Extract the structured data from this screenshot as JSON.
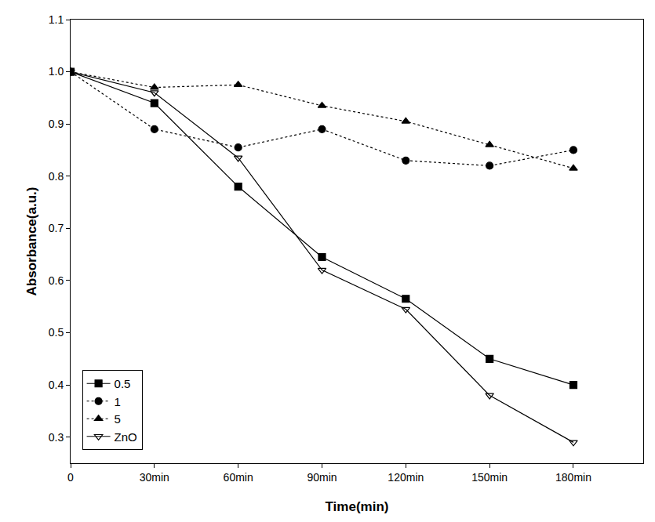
{
  "chart_data": {
    "type": "line",
    "x_label": "Time(min)",
    "y_label": "Absorbance(a.u.)",
    "x": [
      0,
      30,
      60,
      90,
      120,
      150,
      180
    ],
    "xlim": [
      0,
      205
    ],
    "xticks": [
      0,
      {
        "value": 30,
        "label": "30min"
      },
      {
        "value": 60,
        "label": "60min"
      },
      {
        "value": 90,
        "label": "90min"
      },
      {
        "value": 120,
        "label": "120min"
      },
      {
        "value": 150,
        "label": "150min"
      },
      {
        "value": 180,
        "label": "180min"
      }
    ],
    "ylim": [
      0.25,
      1.1
    ],
    "yticks": [
      0.3,
      0.4,
      0.5,
      0.6,
      0.7,
      0.8,
      0.9,
      {
        "value": 1,
        "label": "1.0"
      },
      1.1
    ],
    "grid": false,
    "legend": "lower left",
    "series": [
      {
        "name": "0.5",
        "color": "#000000",
        "marker": "square",
        "line_style": "solid",
        "values": [
          1.0,
          0.94,
          0.78,
          0.645,
          0.565,
          0.45,
          0.4
        ]
      },
      {
        "name": "1",
        "color": "#000000",
        "marker": "circle",
        "line_style": "dot",
        "values": [
          1.0,
          0.89,
          0.855,
          0.89,
          0.83,
          0.82,
          0.85
        ]
      },
      {
        "name": "5",
        "color": "#000000",
        "marker": "triangle-up",
        "line_style": "dot",
        "values": [
          1.0,
          0.97,
          0.975,
          0.935,
          0.905,
          0.86,
          0.815
        ]
      },
      {
        "name": "ZnO",
        "color": "#000000",
        "marker": "triangle-down-open",
        "line_style": "solid",
        "values": [
          1.0,
          0.96,
          0.835,
          0.62,
          0.545,
          0.38,
          0.29
        ]
      }
    ]
  }
}
